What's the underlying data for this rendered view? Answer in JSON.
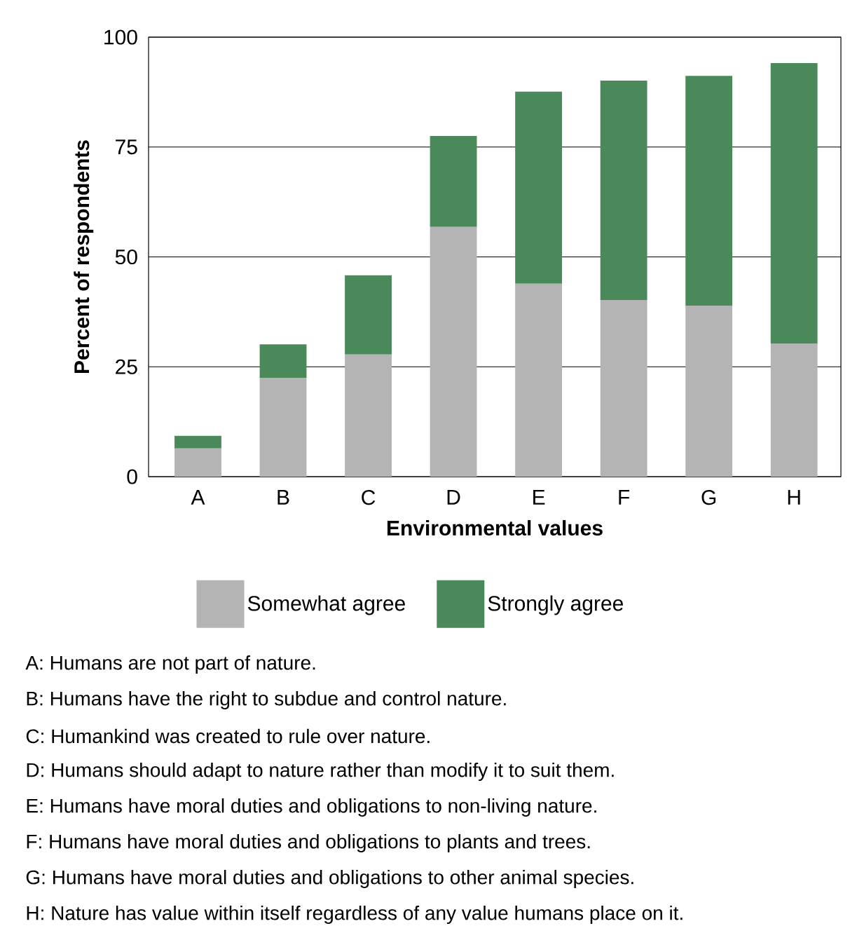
{
  "chart_data": {
    "type": "bar",
    "stacked": true,
    "xlabel": "Environmental values",
    "ylabel": "Percent of respondents",
    "categories": [
      "A",
      "B",
      "C",
      "D",
      "E",
      "F",
      "G",
      "H"
    ],
    "series": [
      {
        "name": "Somewhat agree",
        "color": "#b4b4b4",
        "values": [
          6.4,
          22.5,
          27.8,
          56.8,
          43.9,
          40.2,
          38.9,
          30.3
        ]
      },
      {
        "name": "Strongly agree",
        "color": "#4a8a5a",
        "values": [
          2.9,
          7.6,
          18.0,
          20.7,
          43.7,
          49.9,
          52.3,
          63.8
        ]
      }
    ],
    "ylim": [
      0,
      100
    ],
    "yticks": [
      0,
      25,
      50,
      75,
      100
    ],
    "grid": "y",
    "legend": "bottom",
    "annotations": [
      "A: Humans are not part of nature.",
      "B: Humans have the right to subdue and control nature.",
      "C: Humankind was created to rule over nature.",
      "D: Humans should adapt to nature rather than modify it to suit them.",
      "E: Humans have moral duties and obligations to non-living nature.",
      "F: Humans have moral duties and obligations to plants and trees.",
      "G: Humans have moral duties and obligations to other animal species.",
      "H: Nature has value within itself regardless of any value humans place on it."
    ]
  }
}
